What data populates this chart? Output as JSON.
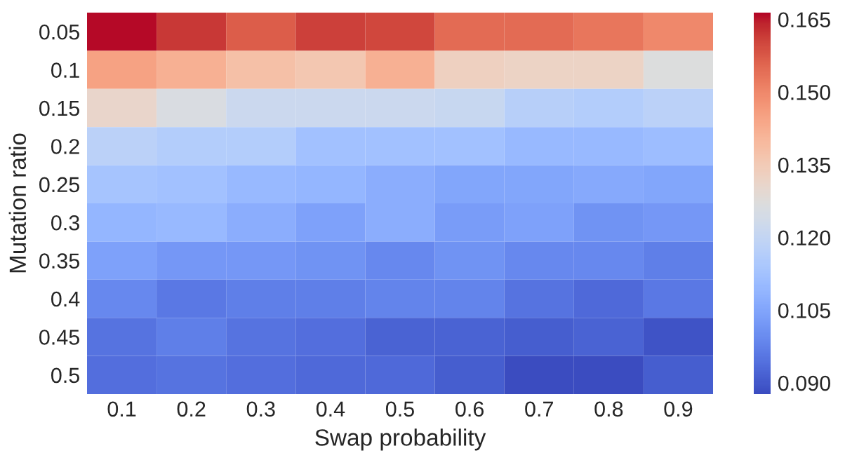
{
  "chart_data": {
    "type": "heatmap",
    "xlabel": "Swap probability",
    "ylabel": "Mutation ratio",
    "categories": [
      "0.1",
      "0.2",
      "0.3",
      "0.4",
      "0.5",
      "0.6",
      "0.7",
      "0.8",
      "0.9"
    ],
    "y_categories": [
      "0.05",
      "0.1",
      "0.15",
      "0.2",
      "0.25",
      "0.3",
      "0.35",
      "0.4",
      "0.45",
      "0.5"
    ],
    "cells": [
      [
        0.166,
        0.162,
        0.157,
        0.161,
        0.16,
        0.155,
        0.155,
        0.153,
        0.15
      ],
      [
        0.145,
        0.142,
        0.138,
        0.136,
        0.142,
        0.133,
        0.132,
        0.132,
        0.127
      ],
      [
        0.131,
        0.126,
        0.122,
        0.122,
        0.122,
        0.121,
        0.117,
        0.116,
        0.118
      ],
      [
        0.118,
        0.116,
        0.116,
        0.112,
        0.112,
        0.112,
        0.11,
        0.11,
        0.111
      ],
      [
        0.113,
        0.112,
        0.11,
        0.109,
        0.107,
        0.105,
        0.105,
        0.106,
        0.105
      ],
      [
        0.109,
        0.11,
        0.107,
        0.104,
        0.107,
        0.103,
        0.104,
        0.101,
        0.102
      ],
      [
        0.104,
        0.102,
        0.102,
        0.101,
        0.099,
        0.101,
        0.099,
        0.099,
        0.097
      ],
      [
        0.099,
        0.096,
        0.097,
        0.097,
        0.098,
        0.098,
        0.095,
        0.093,
        0.096
      ],
      [
        0.095,
        0.097,
        0.095,
        0.094,
        0.092,
        0.092,
        0.091,
        0.092,
        0.089
      ],
      [
        0.094,
        0.095,
        0.094,
        0.093,
        0.093,
        0.091,
        0.088,
        0.088,
        0.091
      ]
    ],
    "clim": [
      0.0877,
      0.1664
    ],
    "cticks": [
      {
        "value": 0.09,
        "label": "0.090"
      },
      {
        "value": 0.105,
        "label": "0.105"
      },
      {
        "value": 0.12,
        "label": "0.120"
      },
      {
        "value": 0.135,
        "label": "0.135"
      },
      {
        "value": 0.15,
        "label": "0.150"
      },
      {
        "value": 0.165,
        "label": "0.165"
      }
    ]
  }
}
